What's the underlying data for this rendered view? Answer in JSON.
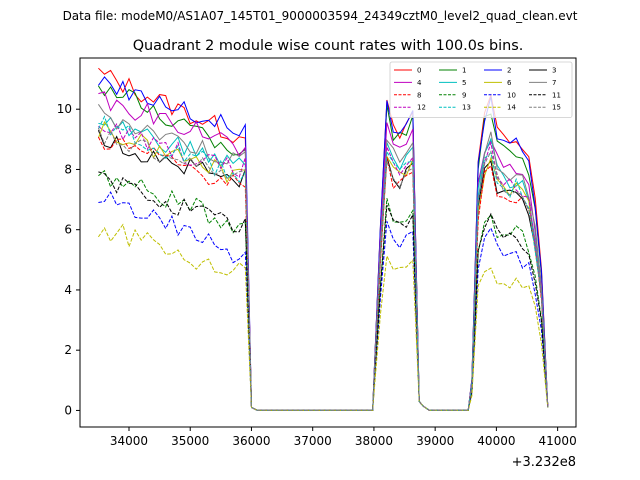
{
  "suptitle": "Data file: modeM0/AS1A07_145T01_9000003594_24349cztM0_level2_quad_clean.evt",
  "chart_data": {
    "type": "line",
    "title": "Quadrant 2 module wise count rates with 100.0s bins.",
    "xlabel": "",
    "ylabel": "",
    "x_offset_label": "+3.232e8",
    "xlim": [
      33200,
      41300
    ],
    "ylim": [
      -0.55,
      11.7
    ],
    "xticks": [
      34000,
      35000,
      36000,
      37000,
      38000,
      39000,
      40000,
      41000
    ],
    "xtick_labels": [
      "34000",
      "35000",
      "36000",
      "37000",
      "38000",
      "39000",
      "40000",
      "41000"
    ],
    "yticks": [
      0,
      2,
      4,
      6,
      8,
      10
    ],
    "ytick_labels": [
      "0",
      "2",
      "4",
      "6",
      "8",
      "10"
    ],
    "legend_position": "top-right",
    "legend_columns": 4,
    "segments": [
      {
        "x_start": 33500,
        "x_end": 35900,
        "n": 25
      },
      {
        "x_start": 36000,
        "x_end": 37980,
        "n": 21
      },
      {
        "x_start": 38000,
        "x_end": 38740,
        "n": 8
      },
      {
        "x_start": 38800,
        "x_end": 39540,
        "n": 8
      },
      {
        "x_start": 39600,
        "x_end": 40840,
        "n": 13
      }
    ],
    "series": [
      {
        "name": "0",
        "color": "#ff0000",
        "dashed": false,
        "levels": {
          "seg1_start": 11.2,
          "seg1_end": 9.0,
          "peak2": 10.1,
          "peak3": 10.4
        }
      },
      {
        "name": "1",
        "color": "#008000",
        "dashed": false,
        "levels": {
          "seg1_start": 10.8,
          "seg1_end": 8.5,
          "peak2": 10.0,
          "peak3": 10.0
        }
      },
      {
        "name": "2",
        "color": "#0000ff",
        "dashed": false,
        "levels": {
          "seg1_start": 11.0,
          "seg1_end": 9.2,
          "peak2": 10.2,
          "peak3": 10.2
        }
      },
      {
        "name": "3",
        "color": "#000000",
        "dashed": false,
        "levels": {
          "seg1_start": 9.0,
          "seg1_end": 7.6,
          "peak2": 8.4,
          "peak3": 8.3
        }
      },
      {
        "name": "4",
        "color": "#bf00bf",
        "dashed": false,
        "levels": {
          "seg1_start": 10.4,
          "seg1_end": 8.7,
          "peak2": 9.6,
          "peak3": 9.2
        }
      },
      {
        "name": "5",
        "color": "#00bfbf",
        "dashed": false,
        "levels": {
          "seg1_start": 9.6,
          "seg1_end": 8.0,
          "peak2": 9.0,
          "peak3": 8.9
        }
      },
      {
        "name": "6",
        "color": "#bfbf00",
        "dashed": false,
        "levels": {
          "seg1_start": 9.3,
          "seg1_end": 7.7,
          "peak2": 8.6,
          "peak3": 8.5
        }
      },
      {
        "name": "7",
        "color": "#808080",
        "dashed": false,
        "levels": {
          "seg1_start": 9.9,
          "seg1_end": 8.2,
          "peak2": 9.2,
          "peak3": 9.0
        }
      },
      {
        "name": "8",
        "color": "#ff0000",
        "dashed": true,
        "levels": {
          "seg1_start": 9.0,
          "seg1_end": 7.4,
          "peak2": 8.2,
          "peak3": 8.1
        }
      },
      {
        "name": "9",
        "color": "#008000",
        "dashed": true,
        "levels": {
          "seg1_start": 7.9,
          "seg1_end": 6.1,
          "peak2": 6.9,
          "peak3": 6.7
        }
      },
      {
        "name": "10",
        "color": "#0000ff",
        "dashed": true,
        "levels": {
          "seg1_start": 7.2,
          "seg1_end": 5.0,
          "peak2": 6.2,
          "peak3": 5.9
        }
      },
      {
        "name": "11",
        "color": "#000000",
        "dashed": true,
        "levels": {
          "seg1_start": 7.7,
          "seg1_end": 6.0,
          "peak2": 6.8,
          "peak3": 6.6
        }
      },
      {
        "name": "12",
        "color": "#bf00bf",
        "dashed": true,
        "levels": {
          "seg1_start": 9.4,
          "seg1_end": 7.9,
          "peak2": 8.8,
          "peak3": 8.6
        }
      },
      {
        "name": "13",
        "color": "#00bfbf",
        "dashed": true,
        "levels": {
          "seg1_start": 9.5,
          "seg1_end": 7.8,
          "peak2": 8.7,
          "peak3": 8.5
        }
      },
      {
        "name": "14",
        "color": "#bfbf00",
        "dashed": true,
        "levels": {
          "seg1_start": 6.1,
          "seg1_end": 4.5,
          "peak2": 5.3,
          "peak3": 4.9
        }
      },
      {
        "name": "15",
        "color": "#808080",
        "dashed": true,
        "levels": {
          "seg1_start": 9.2,
          "seg1_end": 7.6,
          "peak2": 8.5,
          "peak3": 8.4
        }
      }
    ]
  }
}
